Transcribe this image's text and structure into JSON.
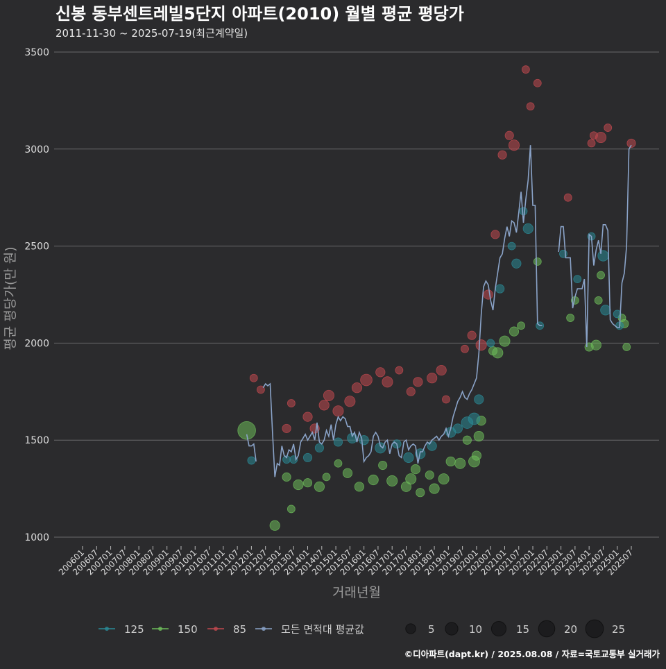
{
  "chart_data": {
    "type": "scatter",
    "title": "신봉 동부센트레빌5단지 아파트(2010) 월별 평균 평당가",
    "subtitle": "2011-11-30 ~ 2025-07-19(최근계약일)",
    "xlabel": "거래년월",
    "ylabel": "평균 평당가(만 원)",
    "ylim": [
      1000,
      3500
    ],
    "yticks": [
      1000,
      1500,
      2000,
      2500,
      3000,
      3500
    ],
    "x_start": "2006-01",
    "x_end": "2025-07",
    "x_ticks": [
      "200601",
      "200607",
      "200701",
      "200707",
      "200801",
      "200807",
      "200901",
      "200907",
      "201001",
      "201007",
      "201101",
      "201107",
      "201201",
      "201207",
      "201301",
      "201307",
      "201401",
      "201407",
      "201501",
      "201507",
      "201601",
      "201607",
      "201701",
      "201707",
      "201801",
      "201807",
      "201901",
      "201907",
      "202001",
      "202007",
      "202101",
      "202107",
      "202201",
      "202207",
      "202301",
      "202307",
      "202401",
      "202407",
      "202501",
      "202507"
    ],
    "grid": true,
    "legend_position": "bottom",
    "colors": {
      "125": "#2a8a96",
      "150": "#6dbb5a",
      "85": "#c0494f",
      "avg": "#8aa3c8"
    },
    "series": [
      {
        "name": "125",
        "points": [
          [
            "2012-01",
            1395,
            2
          ],
          [
            "2013-04",
            1400,
            2
          ],
          [
            "2013-07",
            1400,
            2
          ],
          [
            "2014-01",
            1410,
            3
          ],
          [
            "2014-06",
            1460,
            3
          ],
          [
            "2015-02",
            1490,
            3
          ],
          [
            "2015-08",
            1510,
            5
          ],
          [
            "2016-01",
            1500,
            4
          ],
          [
            "2016-08",
            1460,
            6
          ],
          [
            "2017-03",
            1480,
            3
          ],
          [
            "2017-08",
            1410,
            5
          ],
          [
            "2018-01",
            1430,
            5
          ],
          [
            "2018-06",
            1470,
            4
          ],
          [
            "2019-02",
            1540,
            5
          ],
          [
            "2019-05",
            1560,
            4
          ],
          [
            "2019-09",
            1590,
            8
          ],
          [
            "2019-12",
            1610,
            8
          ],
          [
            "2020-02",
            1710,
            4
          ],
          [
            "2020-07",
            2000,
            2
          ],
          [
            "2020-11",
            2280,
            3
          ],
          [
            "2021-04",
            2500,
            2
          ],
          [
            "2021-06",
            2410,
            4
          ],
          [
            "2021-09",
            2680,
            2
          ],
          [
            "2021-11",
            2590,
            5
          ],
          [
            "2022-04",
            2090,
            2
          ],
          [
            "2023-02",
            2460,
            2
          ],
          [
            "2023-08",
            2330,
            2
          ],
          [
            "2024-02",
            2550,
            2
          ],
          [
            "2024-07",
            2450,
            6
          ],
          [
            "2024-08",
            2170,
            5
          ],
          [
            "2025-01",
            2150,
            2
          ],
          [
            "2025-02",
            2090,
            2
          ]
        ]
      },
      {
        "name": "150",
        "points": [
          [
            "2011-11",
            1550,
            25
          ],
          [
            "2012-11",
            1060,
            5
          ],
          [
            "2013-04",
            1310,
            3
          ],
          [
            "2013-06",
            1145,
            2
          ],
          [
            "2013-09",
            1270,
            5
          ],
          [
            "2014-01",
            1280,
            3
          ],
          [
            "2014-06",
            1260,
            5
          ],
          [
            "2014-09",
            1310,
            2
          ],
          [
            "2015-02",
            1380,
            2
          ],
          [
            "2015-06",
            1330,
            4
          ],
          [
            "2015-11",
            1260,
            4
          ],
          [
            "2016-05",
            1295,
            5
          ],
          [
            "2016-09",
            1370,
            3
          ],
          [
            "2017-01",
            1290,
            6
          ],
          [
            "2017-07",
            1260,
            5
          ],
          [
            "2017-09",
            1300,
            6
          ],
          [
            "2017-11",
            1350,
            4
          ],
          [
            "2018-01",
            1230,
            3
          ],
          [
            "2018-05",
            1320,
            3
          ],
          [
            "2018-07",
            1250,
            5
          ],
          [
            "2018-11",
            1300,
            6
          ],
          [
            "2019-02",
            1390,
            4
          ],
          [
            "2019-06",
            1380,
            6
          ],
          [
            "2019-09",
            1500,
            3
          ],
          [
            "2019-12",
            1390,
            7
          ],
          [
            "2020-01",
            1420,
            4
          ],
          [
            "2020-02",
            1520,
            5
          ],
          [
            "2020-03",
            1600,
            4
          ],
          [
            "2020-08",
            1960,
            3
          ],
          [
            "2020-10",
            1950,
            6
          ],
          [
            "2021-01",
            2010,
            6
          ],
          [
            "2021-05",
            2060,
            4
          ],
          [
            "2021-08",
            2090,
            2
          ],
          [
            "2022-03",
            2420,
            2
          ],
          [
            "2023-05",
            2130,
            2
          ],
          [
            "2023-07",
            2220,
            2
          ],
          [
            "2024-01",
            1980,
            3
          ],
          [
            "2024-04",
            1990,
            5
          ],
          [
            "2024-05",
            2220,
            2
          ],
          [
            "2024-06",
            2350,
            2
          ],
          [
            "2025-03",
            2130,
            2
          ],
          [
            "2025-04",
            2100,
            3
          ],
          [
            "2025-05",
            1980,
            2
          ]
        ]
      },
      {
        "name": "85",
        "points": [
          [
            "2012-02",
            1820,
            2
          ],
          [
            "2012-05",
            1760,
            2
          ],
          [
            "2013-04",
            1560,
            3
          ],
          [
            "2013-06",
            1690,
            2
          ],
          [
            "2014-01",
            1620,
            4
          ],
          [
            "2014-04",
            1560,
            4
          ],
          [
            "2014-08",
            1680,
            5
          ],
          [
            "2014-10",
            1730,
            6
          ],
          [
            "2015-02",
            1650,
            6
          ],
          [
            "2015-07",
            1700,
            6
          ],
          [
            "2015-10",
            1770,
            5
          ],
          [
            "2016-02",
            1810,
            8
          ],
          [
            "2016-08",
            1850,
            4
          ],
          [
            "2016-11",
            1800,
            6
          ],
          [
            "2017-04",
            1860,
            2
          ],
          [
            "2017-09",
            1750,
            3
          ],
          [
            "2017-12",
            1800,
            4
          ],
          [
            "2018-06",
            1820,
            5
          ],
          [
            "2018-10",
            1860,
            5
          ],
          [
            "2018-12",
            1710,
            2
          ],
          [
            "2019-08",
            1970,
            2
          ],
          [
            "2019-11",
            2040,
            3
          ],
          [
            "2020-03",
            1990,
            6
          ],
          [
            "2020-06",
            2250,
            4
          ],
          [
            "2020-09",
            2560,
            3
          ],
          [
            "2020-12",
            2970,
            3
          ],
          [
            "2021-03",
            3070,
            3
          ],
          [
            "2021-05",
            3020,
            6
          ],
          [
            "2021-10",
            3410,
            2
          ],
          [
            "2021-12",
            3220,
            2
          ],
          [
            "2022-03",
            3340,
            2
          ],
          [
            "2023-04",
            2750,
            2
          ],
          [
            "2024-02",
            3030,
            2
          ],
          [
            "2024-03",
            3070,
            2
          ],
          [
            "2024-06",
            3060,
            6
          ],
          [
            "2024-09",
            3110,
            2
          ],
          [
            "2025-07",
            3030,
            3
          ]
        ]
      }
    ],
    "average_line": {
      "name": "모든 면적대 평균값",
      "points": [
        [
          "2011-11",
          1530
        ],
        [
          "2011-12",
          1470
        ],
        [
          "2012-01",
          1470
        ],
        [
          "2012-02",
          1480
        ],
        [
          "2012-03",
          1390
        ],
        [
          "2012-06",
          1770
        ],
        [
          "2012-07",
          1790
        ],
        [
          "2012-08",
          1780
        ],
        [
          "2012-09",
          1790
        ],
        [
          "2012-10",
          1540
        ],
        [
          "2012-11",
          1310
        ],
        [
          "2012-12",
          1380
        ],
        [
          "2013-01",
          1370
        ],
        [
          "2013-02",
          1470
        ],
        [
          "2013-03",
          1420
        ],
        [
          "2013-04",
          1410
        ],
        [
          "2013-05",
          1450
        ],
        [
          "2013-06",
          1440
        ],
        [
          "2013-07",
          1480
        ],
        [
          "2013-08",
          1400
        ],
        [
          "2013-09",
          1420
        ],
        [
          "2013-10",
          1490
        ],
        [
          "2013-11",
          1510
        ],
        [
          "2013-12",
          1530
        ],
        [
          "2014-01",
          1500
        ],
        [
          "2014-02",
          1520
        ],
        [
          "2014-03",
          1540
        ],
        [
          "2014-04",
          1500
        ],
        [
          "2014-05",
          1590
        ],
        [
          "2014-06",
          1490
        ],
        [
          "2014-07",
          1480
        ],
        [
          "2014-08",
          1500
        ],
        [
          "2014-09",
          1550
        ],
        [
          "2014-10",
          1520
        ],
        [
          "2014-11",
          1580
        ],
        [
          "2014-12",
          1500
        ],
        [
          "2015-01",
          1580
        ],
        [
          "2015-02",
          1620
        ],
        [
          "2015-03",
          1600
        ],
        [
          "2015-04",
          1620
        ],
        [
          "2015-05",
          1610
        ],
        [
          "2015-06",
          1570
        ],
        [
          "2015-07",
          1570
        ],
        [
          "2015-08",
          1520
        ],
        [
          "2015-09",
          1540
        ],
        [
          "2015-10",
          1490
        ],
        [
          "2015-11",
          1540
        ],
        [
          "2015-12",
          1510
        ],
        [
          "2016-01",
          1390
        ],
        [
          "2016-02",
          1410
        ],
        [
          "2016-03",
          1420
        ],
        [
          "2016-04",
          1440
        ],
        [
          "2016-05",
          1520
        ],
        [
          "2016-06",
          1540
        ],
        [
          "2016-07",
          1520
        ],
        [
          "2016-08",
          1470
        ],
        [
          "2016-09",
          1460
        ],
        [
          "2016-10",
          1490
        ],
        [
          "2016-11",
          1500
        ],
        [
          "2016-12",
          1430
        ],
        [
          "2017-01",
          1480
        ],
        [
          "2017-02",
          1490
        ],
        [
          "2017-03",
          1480
        ],
        [
          "2017-04",
          1420
        ],
        [
          "2017-05",
          1410
        ],
        [
          "2017-06",
          1490
        ],
        [
          "2017-07",
          1500
        ],
        [
          "2017-08",
          1450
        ],
        [
          "2017-09",
          1470
        ],
        [
          "2017-10",
          1480
        ],
        [
          "2017-11",
          1470
        ],
        [
          "2017-12",
          1380
        ],
        [
          "2018-01",
          1440
        ],
        [
          "2018-02",
          1440
        ],
        [
          "2018-03",
          1470
        ],
        [
          "2018-04",
          1490
        ],
        [
          "2018-05",
          1480
        ],
        [
          "2018-06",
          1500
        ],
        [
          "2018-07",
          1510
        ],
        [
          "2018-08",
          1520
        ],
        [
          "2018-09",
          1500
        ],
        [
          "2018-10",
          1520
        ],
        [
          "2018-11",
          1530
        ],
        [
          "2018-12",
          1560
        ],
        [
          "2019-01",
          1520
        ],
        [
          "2019-02",
          1560
        ],
        [
          "2019-03",
          1620
        ],
        [
          "2019-04",
          1660
        ],
        [
          "2019-05",
          1700
        ],
        [
          "2019-06",
          1720
        ],
        [
          "2019-07",
          1750
        ],
        [
          "2019-08",
          1720
        ],
        [
          "2019-09",
          1710
        ],
        [
          "2019-10",
          1740
        ],
        [
          "2019-11",
          1760
        ],
        [
          "2019-12",
          1790
        ],
        [
          "2020-01",
          1820
        ],
        [
          "2020-02",
          1950
        ],
        [
          "2020-03",
          2150
        ],
        [
          "2020-04",
          2290
        ],
        [
          "2020-05",
          2320
        ],
        [
          "2020-06",
          2300
        ],
        [
          "2020-07",
          2220
        ],
        [
          "2020-08",
          2170
        ],
        [
          "2020-09",
          2280
        ],
        [
          "2020-10",
          2360
        ],
        [
          "2020-11",
          2440
        ],
        [
          "2020-12",
          2460
        ],
        [
          "2021-01",
          2540
        ],
        [
          "2021-02",
          2600
        ],
        [
          "2021-03",
          2550
        ],
        [
          "2021-04",
          2630
        ],
        [
          "2021-05",
          2620
        ],
        [
          "2021-06",
          2570
        ],
        [
          "2021-07",
          2670
        ],
        [
          "2021-08",
          2780
        ],
        [
          "2021-09",
          2620
        ],
        [
          "2021-10",
          2740
        ],
        [
          "2021-11",
          2840
        ],
        [
          "2021-12",
          3020
        ],
        [
          "2022-01",
          2710
        ],
        [
          "2022-02",
          2710
        ],
        [
          "2022-03",
          2100
        ],
        [
          "2022-04",
          2090
        ],
        [
          "2022-05",
          2090
        ],
        [
          "2022-12",
          2470
        ],
        [
          "2023-01",
          2600
        ],
        [
          "2023-02",
          2600
        ],
        [
          "2023-03",
          2440
        ],
        [
          "2023-04",
          2440
        ],
        [
          "2023-05",
          2440
        ],
        [
          "2023-06",
          2180
        ],
        [
          "2023-07",
          2240
        ],
        [
          "2023-08",
          2280
        ],
        [
          "2023-09",
          2280
        ],
        [
          "2023-10",
          2280
        ],
        [
          "2023-11",
          2330
        ],
        [
          "2023-12",
          1980
        ],
        [
          "2024-01",
          2560
        ],
        [
          "2024-02",
          2550
        ],
        [
          "2024-03",
          2400
        ],
        [
          "2024-04",
          2480
        ],
        [
          "2024-05",
          2530
        ],
        [
          "2024-06",
          2460
        ],
        [
          "2024-07",
          2610
        ],
        [
          "2024-08",
          2610
        ],
        [
          "2024-09",
          2580
        ],
        [
          "2024-10",
          2120
        ],
        [
          "2024-11",
          2100
        ],
        [
          "2024-12",
          2090
        ],
        [
          "2025-01",
          2080
        ],
        [
          "2025-02",
          2080
        ],
        [
          "2025-03",
          2310
        ],
        [
          "2025-04",
          2360
        ],
        [
          "2025-05",
          2500
        ],
        [
          "2025-06",
          3000
        ],
        [
          "2025-07",
          3020
        ]
      ]
    },
    "legend": {
      "series_labels": [
        "125",
        "150",
        "85",
        "모든 면적대 평균값"
      ],
      "size_labels": [
        "5",
        "10",
        "15",
        "20",
        "25"
      ]
    },
    "caption": "©디아파트(dapt.kr) / 2025.08.08 / 자료=국토교통부 실거래가"
  }
}
